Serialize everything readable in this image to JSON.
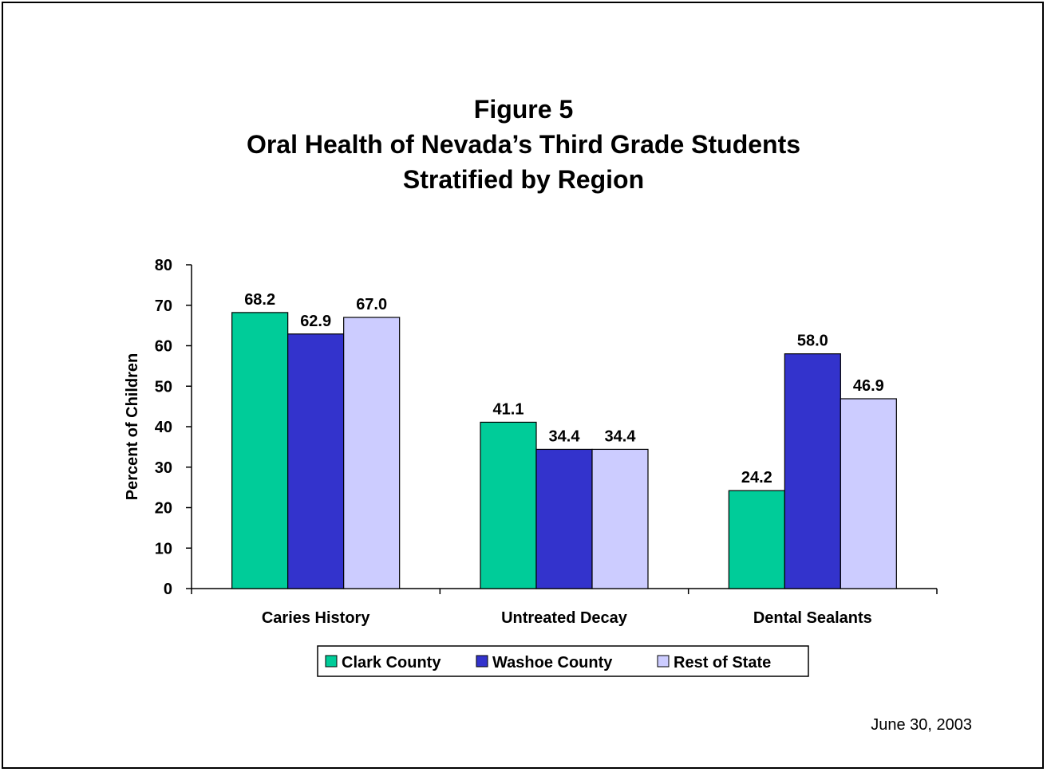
{
  "page": {
    "title_lines": [
      "Figure 5",
      "Oral Health of Nevada’s Third Grade Students",
      "Stratified by Region"
    ],
    "footer_date": "June 30, 2003"
  },
  "chart_data": {
    "type": "bar",
    "title": "Figure 5 Oral Health of Nevada’s Third Grade Students Stratified by Region",
    "ylabel": "Percent of Children",
    "xlabel": "",
    "ylim": [
      0,
      80
    ],
    "yticks": [
      0,
      10,
      20,
      30,
      40,
      50,
      60,
      70,
      80
    ],
    "categories": [
      "Caries History",
      "Untreated Decay",
      "Dental Sealants"
    ],
    "series": [
      {
        "name": "Clark County",
        "color": "#00CC99",
        "values": [
          68.2,
          41.1,
          24.2
        ]
      },
      {
        "name": "Washoe County",
        "color": "#3333CC",
        "values": [
          62.9,
          34.4,
          58.0
        ]
      },
      {
        "name": "Rest of State",
        "color": "#CCCCFF",
        "values": [
          67.0,
          34.4,
          46.9
        ]
      }
    ],
    "data_labels": true,
    "legend_position": "bottom",
    "grid": false
  }
}
